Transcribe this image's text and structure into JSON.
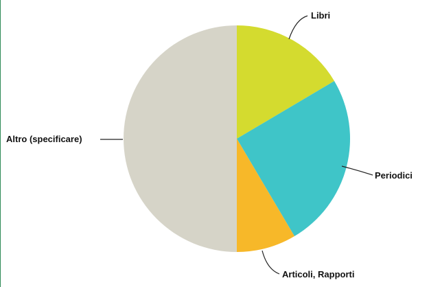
{
  "chart_data": {
    "type": "pie",
    "start": "top",
    "direction": "clockwise",
    "slices": [
      {
        "label": "Libri",
        "value": 16.5,
        "color": "#d4db2f"
      },
      {
        "label": "Periodici",
        "value": 25,
        "color": "#3fc5c8"
      },
      {
        "label": "Articoli, Rapporti",
        "value": 8.5,
        "color": "#f7b829"
      },
      {
        "label": "Altro (specificare)",
        "value": 50,
        "color": "#d6d4c8"
      }
    ]
  }
}
